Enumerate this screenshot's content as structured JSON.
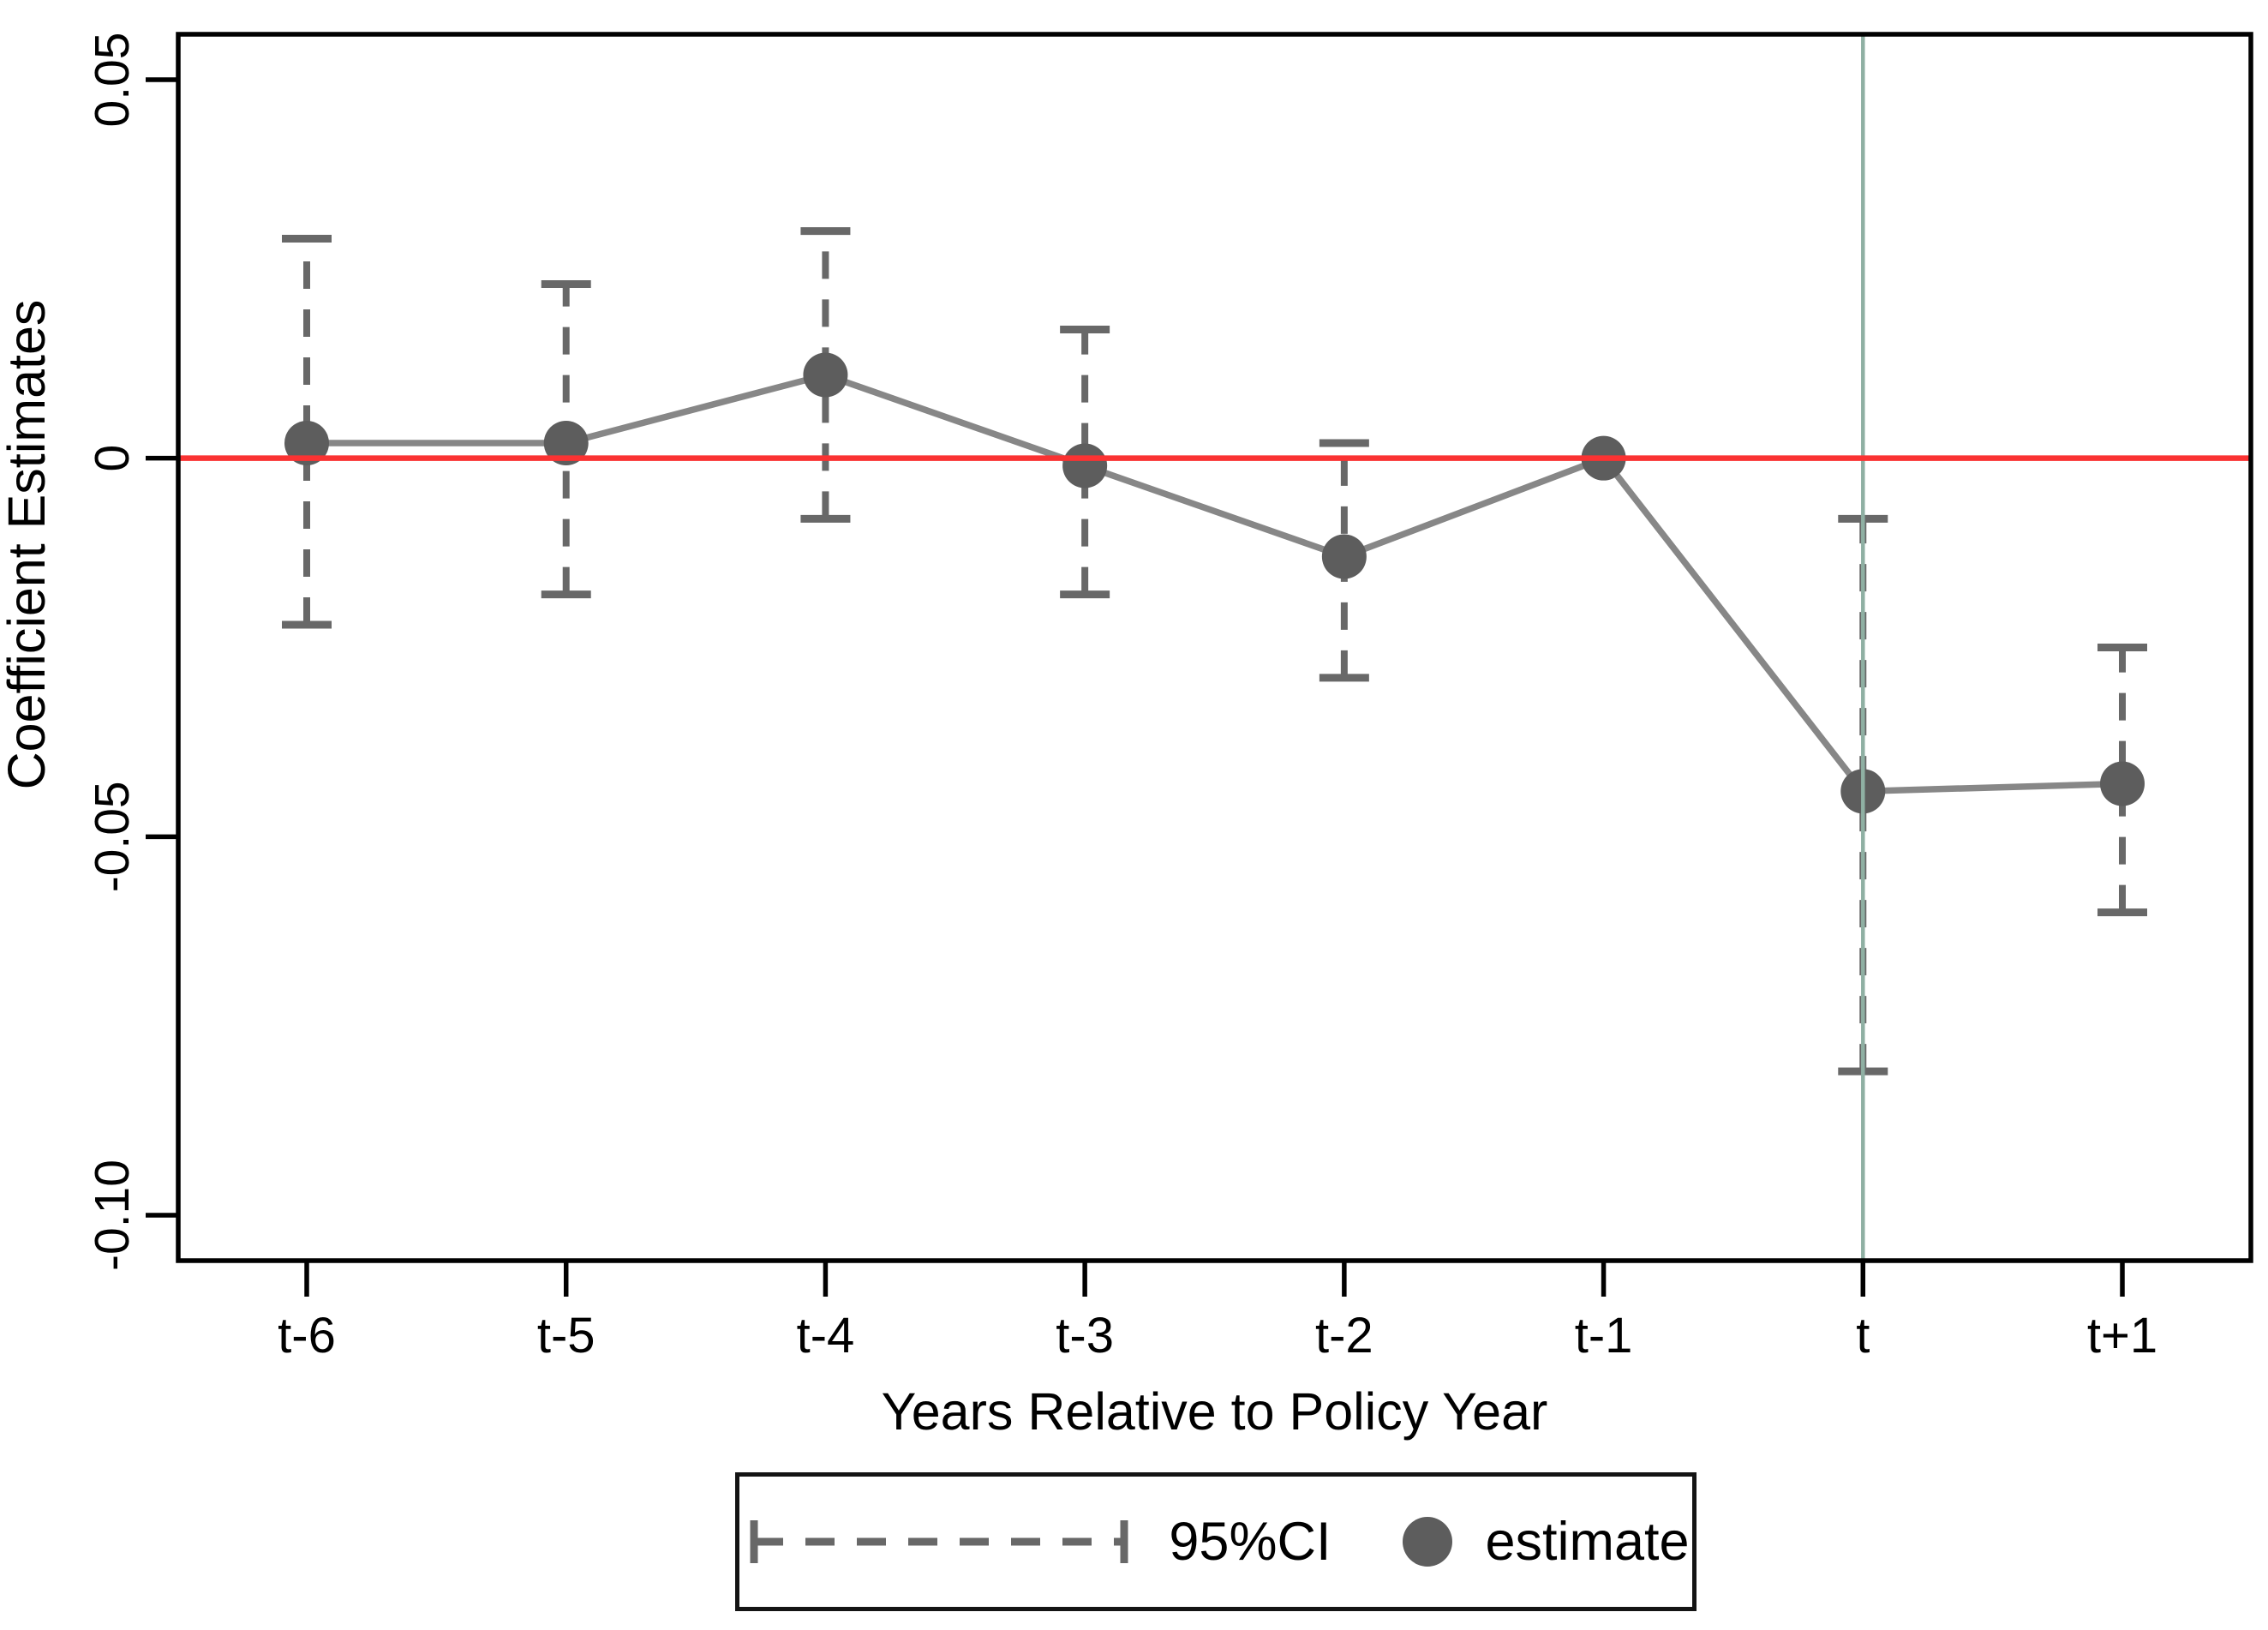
{
  "axes": {
    "y_label": "Coefficient Estimates",
    "x_label": "Years Relative to Policy Year"
  },
  "legend": {
    "ci_label": "95%CI",
    "estimate_label": "estimate"
  },
  "colors": {
    "axis": "#000000",
    "zero_line": "#fa3232",
    "policy_line": "#8fb0a3",
    "series_line": "#878787",
    "marker": "#5d5d5d",
    "ci": "#686868",
    "text": "#000000"
  },
  "chart_data": {
    "type": "line",
    "subtype": "event-study-errorbar",
    "title": "",
    "xlabel": "Years Relative to Policy Year",
    "ylabel": "Coefficient Estimates",
    "categories": [
      "t-6",
      "t-5",
      "t-4",
      "t-3",
      "t-2",
      "t-1",
      "t",
      "t+1"
    ],
    "series": [
      {
        "name": "estimate",
        "values": [
          0.002,
          0.002,
          0.011,
          -0.001,
          -0.013,
          0.0,
          -0.044,
          -0.043
        ]
      },
      {
        "name": "ci_low",
        "values": [
          -0.022,
          -0.018,
          -0.008,
          -0.018,
          -0.029,
          null,
          -0.081,
          -0.06
        ]
      },
      {
        "name": "ci_high",
        "values": [
          0.029,
          0.023,
          0.03,
          0.017,
          0.002,
          null,
          -0.008,
          -0.025
        ]
      }
    ],
    "y_ticks": [
      0.05,
      0,
      -0.05,
      -0.1
    ],
    "y_tick_labels": [
      "0.05",
      "0",
      "-0.05",
      "-0.10"
    ],
    "ylim": [
      -0.106,
      0.056
    ],
    "grid": false,
    "legend_position": "bottom",
    "reference_lines": {
      "horizontal_at_y": 0,
      "vertical_at_category": "t"
    }
  }
}
